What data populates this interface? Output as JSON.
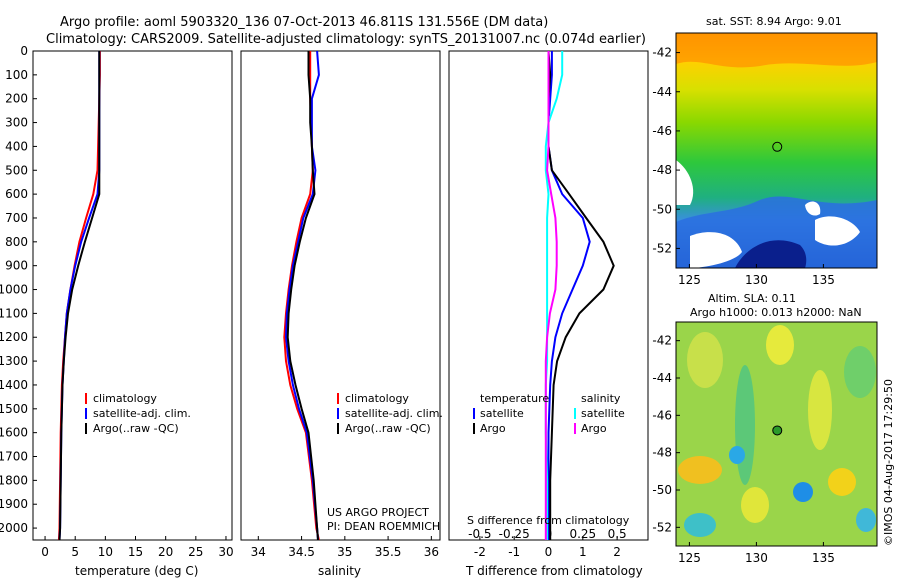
{
  "header": {
    "title_line1": "Argo profile: aoml 5903320_136 07-Oct-2013 46.811S 131.556E (DM data)",
    "title_line2": "Climatology: CARS2009. Satellite-adjusted climatology: synTS_20131007.nc (0.074d earlier)"
  },
  "colors": {
    "climatology": "#ff0000",
    "satellite": "#0000ff",
    "argo": "#000000",
    "cyan": "#00ffff",
    "magenta": "#ff00ff"
  },
  "axes": {
    "depth_ticks": [
      "0",
      "100",
      "200",
      "300",
      "400",
      "500",
      "600",
      "700",
      "800",
      "900",
      "1000",
      "1100",
      "1200",
      "1300",
      "1400",
      "1500",
      "1600",
      "1700",
      "1800",
      "1900",
      "2000"
    ],
    "temp_ticks": [
      "0",
      "5",
      "10",
      "15",
      "20",
      "25",
      "30"
    ],
    "sal_ticks": [
      "34",
      "34.5",
      "35",
      "35.5",
      "36"
    ],
    "diff_bottom_ticks": [
      "-2",
      "-1",
      "0",
      "1",
      "2"
    ],
    "diff_top_ticks": [
      "-0.5",
      "-0.25",
      "0",
      "0.25",
      "0.5"
    ],
    "map_lat_ticks": [
      "-42",
      "-44",
      "-46",
      "-48",
      "-50",
      "-52"
    ],
    "map_lon_ticks": [
      "125",
      "130",
      "135"
    ]
  },
  "panels": {
    "temperature": {
      "xlabel": "temperature (deg C)",
      "legend": [
        "climatology",
        "satellite-adj. clim.",
        "Argo(..raw -QC)"
      ]
    },
    "salinity": {
      "xlabel": "salinity",
      "legend": [
        "climatology",
        "satellite-adj. clim.",
        "Argo(..raw -QC)"
      ],
      "credit1": "US ARGO PROJECT",
      "credit2": "PI: DEAN ROEMMICH"
    },
    "difference": {
      "xlabel": "T difference from climatology",
      "top_label": "S difference from climatology",
      "legend_t_title": "temperature",
      "legend_s_title": "salinity",
      "legend_t": [
        "satellite",
        "Argo"
      ],
      "legend_s": [
        "satellite",
        "Argo"
      ]
    }
  },
  "maps": {
    "sst_title": "sat. SST: 8.94  Argo: 9.01",
    "sla_title1": "Altim. SLA: 0.11",
    "sla_title2": "Argo h1000: 0.013 h2000: NaN",
    "footer": "©IMOS 04-Aug-2017 17:29:50"
  },
  "chart_data": [
    {
      "type": "line",
      "title": "temperature profile",
      "xlabel": "temperature (deg C)",
      "ylabel": "depth",
      "xlim": [
        -2,
        31
      ],
      "ylim": [
        2050,
        0
      ],
      "series": [
        {
          "name": "climatology",
          "color": "#ff0000",
          "x": [
            9.1,
            9.1,
            9.0,
            8.9,
            8.8,
            8.7,
            8.0,
            6.8,
            5.7,
            4.9,
            4.2,
            3.6,
            3.3,
            3.0,
            2.8,
            2.7,
            2.6,
            2.5,
            2.4,
            2.3
          ],
          "y": [
            0,
            100,
            200,
            300,
            400,
            500,
            600,
            700,
            800,
            900,
            1000,
            1100,
            1200,
            1300,
            1400,
            1500,
            1600,
            1800,
            2000,
            2050
          ]
        },
        {
          "name": "satellite-adj. clim.",
          "color": "#0000ff",
          "x": [
            9.0,
            9.0,
            9.0,
            9.0,
            9.0,
            9.0,
            8.7,
            7.3,
            6.0,
            5.0,
            4.2,
            3.6,
            3.3,
            3.1,
            2.9,
            2.8,
            2.7,
            2.6,
            2.5,
            2.4
          ],
          "y": [
            0,
            100,
            200,
            300,
            400,
            500,
            600,
            700,
            800,
            900,
            1000,
            1100,
            1200,
            1300,
            1400,
            1500,
            1600,
            1800,
            2000,
            2050
          ]
        },
        {
          "name": "Argo(..raw -QC)",
          "color": "#000000",
          "x": [
            9.0,
            9.0,
            9.0,
            9.0,
            9.0,
            9.0,
            9.0,
            7.8,
            6.6,
            5.5,
            4.5,
            3.8,
            3.4,
            3.1,
            2.9,
            2.8,
            2.7,
            2.6,
            2.5,
            2.4
          ],
          "y": [
            0,
            100,
            200,
            300,
            400,
            500,
            600,
            700,
            800,
            900,
            1000,
            1100,
            1200,
            1300,
            1400,
            1500,
            1600,
            1800,
            2000,
            2050
          ]
        }
      ]
    },
    {
      "type": "line",
      "title": "salinity profile",
      "xlabel": "salinity",
      "ylabel": "depth",
      "xlim": [
        33.8,
        36.1
      ],
      "ylim": [
        2050,
        0
      ],
      "series": [
        {
          "name": "climatology",
          "color": "#ff0000",
          "x": [
            34.6,
            34.6,
            34.6,
            34.61,
            34.62,
            34.63,
            34.6,
            34.5,
            34.44,
            34.39,
            34.35,
            34.32,
            34.3,
            34.32,
            34.37,
            34.45,
            34.55,
            34.62,
            34.67,
            34.7
          ],
          "y": [
            0,
            100,
            200,
            300,
            400,
            500,
            600,
            700,
            800,
            900,
            1000,
            1100,
            1200,
            1300,
            1400,
            1500,
            1600,
            1800,
            2000,
            2050
          ]
        },
        {
          "name": "satellite-adj. clim.",
          "color": "#0000ff",
          "x": [
            34.68,
            34.7,
            34.62,
            34.62,
            34.62,
            34.66,
            34.63,
            34.52,
            34.46,
            34.4,
            34.36,
            34.33,
            34.32,
            34.35,
            34.4,
            34.47,
            34.56,
            34.63,
            34.68,
            34.69
          ],
          "y": [
            0,
            100,
            200,
            300,
            400,
            500,
            600,
            700,
            800,
            900,
            1000,
            1100,
            1200,
            1300,
            1400,
            1500,
            1600,
            1800,
            2000,
            2050
          ]
        },
        {
          "name": "Argo(..raw -QC)",
          "color": "#000000",
          "x": [
            34.58,
            34.58,
            34.6,
            34.6,
            34.62,
            34.63,
            34.65,
            34.55,
            34.48,
            34.42,
            34.38,
            34.35,
            34.34,
            34.37,
            34.43,
            34.5,
            34.58,
            34.64,
            34.68,
            34.69
          ],
          "y": [
            0,
            100,
            200,
            300,
            400,
            500,
            600,
            700,
            800,
            900,
            1000,
            1100,
            1200,
            1300,
            1400,
            1500,
            1600,
            1800,
            2000,
            2050
          ]
        }
      ]
    },
    {
      "type": "line",
      "title": "difference from climatology",
      "xlabel": "T difference from climatology",
      "top_xlabel": "S difference from climatology",
      "xlim": [
        -2.9,
        2.9
      ],
      "top_xlim": [
        -0.725,
        0.725
      ],
      "ylim": [
        2050,
        0
      ],
      "series": [
        {
          "name": "temperature satellite",
          "color": "#0000ff",
          "x": [
            0.1,
            0.1,
            0.05,
            0.0,
            0.0,
            0.1,
            0.4,
            1.0,
            1.2,
            1.0,
            0.7,
            0.4,
            0.2,
            0.1,
            0.05,
            0.0,
            0.0,
            0.0,
            0.0
          ],
          "y": [
            0,
            100,
            200,
            300,
            400,
            500,
            600,
            700,
            800,
            900,
            1000,
            1100,
            1200,
            1300,
            1400,
            1600,
            1800,
            2000,
            2050
          ]
        },
        {
          "name": "temperature Argo",
          "color": "#000000",
          "x": [
            0.0,
            0.05,
            0.0,
            0.0,
            0.0,
            0.1,
            0.6,
            1.1,
            1.6,
            1.9,
            1.6,
            0.9,
            0.5,
            0.25,
            0.15,
            0.1,
            0.05,
            0.05,
            0.05
          ],
          "y": [
            0,
            100,
            200,
            300,
            400,
            500,
            600,
            700,
            800,
            900,
            1000,
            1100,
            1200,
            1300,
            1400,
            1600,
            1800,
            2000,
            2050
          ]
        },
        {
          "name": "salinity satellite",
          "color": "#00ffff",
          "x": [
            0.1,
            0.1,
            0.06,
            0.0,
            -0.02,
            -0.02,
            0.0,
            -0.01,
            -0.01,
            -0.01,
            -0.01,
            -0.01,
            -0.01,
            -0.01,
            -0.02,
            -0.02,
            -0.01,
            -0.01,
            -0.01
          ],
          "y": [
            0,
            100,
            200,
            300,
            400,
            500,
            600,
            700,
            800,
            900,
            1000,
            1100,
            1200,
            1300,
            1400,
            1600,
            1800,
            2000,
            2050
          ]
        },
        {
          "name": "salinity Argo",
          "color": "#ff00ff",
          "x": [
            0.0,
            0.0,
            0.0,
            0.0,
            0.0,
            -0.01,
            0.02,
            0.05,
            0.06,
            0.06,
            0.05,
            0.01,
            -0.01,
            -0.02,
            -0.02,
            -0.02,
            -0.02,
            -0.02,
            -0.02
          ],
          "y": [
            0,
            100,
            200,
            300,
            400,
            500,
            600,
            700,
            800,
            900,
            1000,
            1100,
            1200,
            1300,
            1400,
            1600,
            1800,
            2000,
            2050
          ]
        }
      ]
    },
    {
      "type": "heatmap",
      "title": "sat. SST: 8.94  Argo: 9.01",
      "xlim": [
        124,
        139
      ],
      "ylim": [
        -53,
        -41
      ],
      "marker": {
        "lon": 131.556,
        "lat": -46.811
      }
    },
    {
      "type": "heatmap",
      "title": "Altim. SLA: 0.11",
      "xlim": [
        124,
        139
      ],
      "ylim": [
        -53,
        -41
      ],
      "marker": {
        "lon": 131.556,
        "lat": -46.811
      }
    }
  ]
}
